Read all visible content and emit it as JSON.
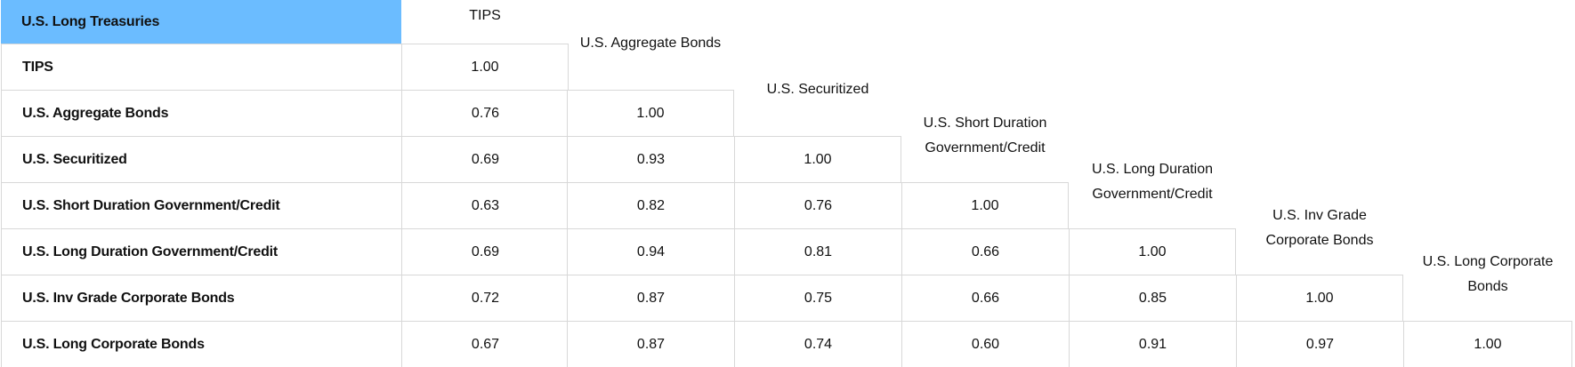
{
  "corner_label": "U.S. Long Treasuries",
  "columns": [
    "TIPS",
    "U.S. Aggregate Bonds",
    "U.S. Securitized",
    "U.S. Short Duration Government/Credit",
    "U.S. Long Duration Government/Credit",
    "U.S. Inv Grade Corporate Bonds",
    "U.S. Long Corporate Bonds"
  ],
  "rows": [
    {
      "label": "TIPS",
      "values": [
        "1.00"
      ]
    },
    {
      "label": "U.S. Aggregate Bonds",
      "values": [
        "0.76",
        "1.00"
      ]
    },
    {
      "label": "U.S. Securitized",
      "values": [
        "0.69",
        "0.93",
        "1.00"
      ]
    },
    {
      "label": "U.S. Short Duration Government/Credit",
      "values": [
        "0.63",
        "0.82",
        "0.76",
        "1.00"
      ]
    },
    {
      "label": "U.S. Long Duration Government/Credit",
      "values": [
        "0.69",
        "0.94",
        "0.81",
        "0.66",
        "1.00"
      ]
    },
    {
      "label": "U.S. Inv Grade Corporate Bonds",
      "values": [
        "0.72",
        "0.87",
        "0.75",
        "0.66",
        "0.85",
        "1.00"
      ]
    },
    {
      "label": "U.S. Long Corporate Bonds",
      "values": [
        "0.67",
        "0.87",
        "0.74",
        "0.60",
        "0.91",
        "0.97",
        "1.00"
      ]
    }
  ]
}
